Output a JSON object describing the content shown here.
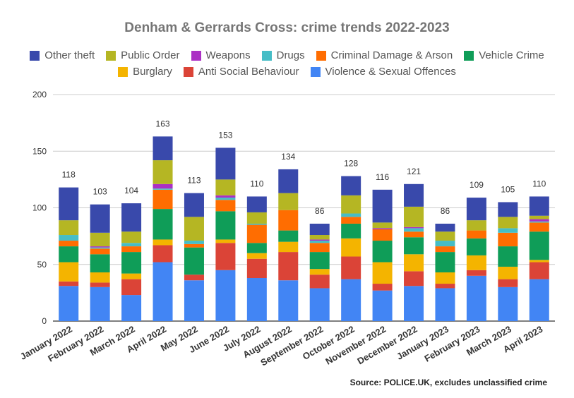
{
  "chart_data": {
    "type": "bar",
    "stacked": true,
    "title": "Denham & Gerrards Cross: crime trends 2022-2023",
    "source": "Source: POLICE.UK, excludes unclassified crime",
    "categories": [
      "January 2022",
      "February 2022",
      "March 2022",
      "April 2022",
      "May 2022",
      "June 2022",
      "July 2022",
      "August 2022",
      "September 2022",
      "October 2022",
      "November 2022",
      "December 2022",
      "January 2023",
      "February 2023",
      "March 2023",
      "April 2023"
    ],
    "totals": [
      118,
      103,
      104,
      163,
      113,
      153,
      110,
      134,
      86,
      128,
      116,
      121,
      86,
      109,
      105,
      110
    ],
    "ylim": [
      0,
      200
    ],
    "yticks": [
      0,
      50,
      100,
      150,
      200
    ],
    "grid": true,
    "legend_position": "top",
    "series": [
      {
        "name": "Violence & Sexual Offences",
        "color": "#4285f4",
        "values": [
          31,
          30,
          23,
          52,
          36,
          45,
          38,
          36,
          29,
          37,
          27,
          31,
          29,
          40,
          30,
          37
        ]
      },
      {
        "name": "Anti Social Behaviour",
        "color": "#db4437",
        "values": [
          4,
          4,
          14,
          15,
          5,
          24,
          17,
          25,
          12,
          20,
          6,
          13,
          4,
          5,
          7,
          15
        ]
      },
      {
        "name": "Burglary",
        "color": "#f4b400",
        "values": [
          17,
          9,
          5,
          5,
          0,
          3,
          5,
          9,
          5,
          16,
          19,
          15,
          10,
          13,
          11,
          2
        ]
      },
      {
        "name": "Vehicle Crime",
        "color": "#0f9d58",
        "values": [
          14,
          16,
          19,
          27,
          24,
          25,
          9,
          10,
          15,
          13,
          19,
          15,
          18,
          15,
          18,
          25
        ]
      },
      {
        "name": "Criminal Damage & Arson",
        "color": "#ff6d01",
        "values": [
          5,
          5,
          5,
          17,
          3,
          10,
          16,
          18,
          8,
          6,
          10,
          5,
          5,
          7,
          12,
          8
        ]
      },
      {
        "name": "Drugs",
        "color": "#46bdc6",
        "values": [
          5,
          1,
          3,
          1,
          3,
          2,
          1,
          0,
          2,
          3,
          0,
          3,
          5,
          0,
          4,
          1
        ]
      },
      {
        "name": "Weapons",
        "color": "#ab30c4",
        "values": [
          0,
          1,
          0,
          4,
          0,
          2,
          0,
          0,
          1,
          0,
          1,
          1,
          0,
          0,
          0,
          2
        ]
      },
      {
        "name": "Public Order",
        "color": "#b5b623",
        "values": [
          13,
          12,
          10,
          21,
          21,
          14,
          10,
          15,
          4,
          16,
          5,
          18,
          8,
          9,
          10,
          3
        ]
      },
      {
        "name": "Other theft",
        "color": "#3949ab",
        "values": [
          29,
          25,
          25,
          21,
          21,
          28,
          14,
          21,
          10,
          17,
          29,
          20,
          7,
          20,
          13,
          17
        ]
      }
    ]
  },
  "legend": {
    "row1": [
      "Other theft",
      "Public Order",
      "Weapons",
      "Drugs",
      "Criminal Damage & Arson",
      "Vehicle Crime"
    ],
    "row2": [
      "Burglary",
      "Anti Social Behaviour",
      "Violence & Sexual Offences"
    ]
  }
}
